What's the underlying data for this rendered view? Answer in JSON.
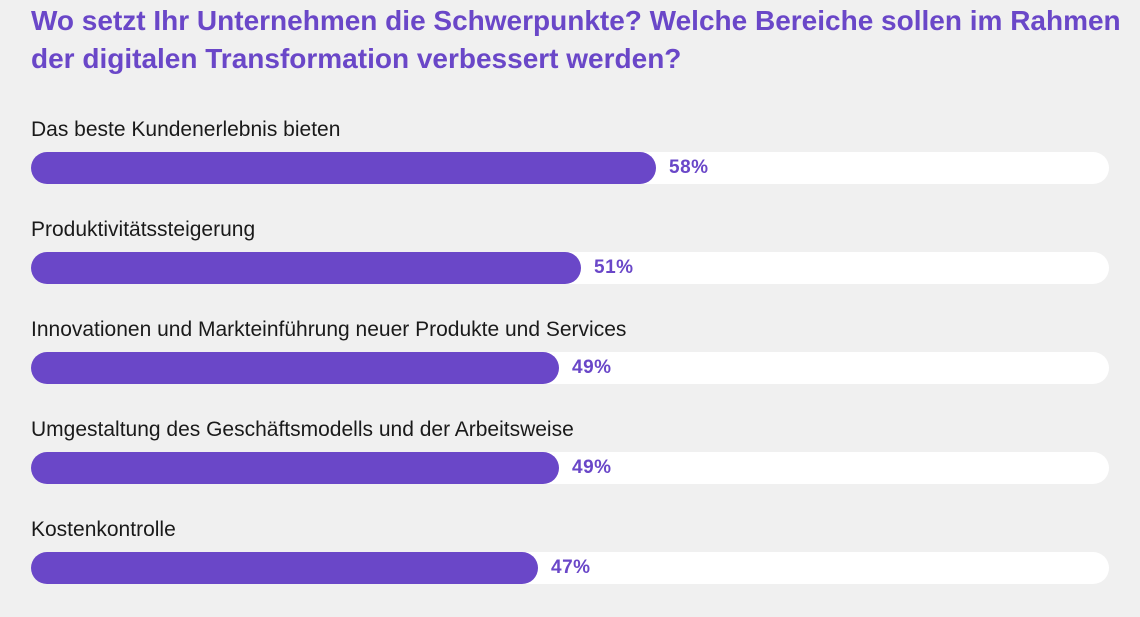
{
  "title": "Wo setzt Ihr Unternehmen die Schwerpunkte? Welche Bereiche sollen im Rahmen der digitalen Transformation verbessert werden?",
  "colors": {
    "accent": "#6a47c8",
    "track": "#ffffff",
    "background": "#f0f0f0"
  },
  "chart_data": {
    "type": "bar",
    "orientation": "horizontal",
    "title": "Wo setzt Ihr Unternehmen die Schwerpunkte? Welche Bereiche sollen im Rahmen der digitalen Transformation verbessert werden?",
    "xlim": [
      0,
      100
    ],
    "unit": "%",
    "categories": [
      "Das beste Kundenerlebnis bieten",
      "Produktivitätssteigerung",
      "Innovationen und Markteinführung neuer Produkte und Services",
      "Umgestaltung des Geschäftsmodells und der Arbeitsweise",
      "Kostenkontrolle"
    ],
    "values": [
      58,
      51,
      49,
      49,
      47
    ],
    "value_labels": [
      "58%",
      "51%",
      "49%",
      "49%",
      "47%"
    ]
  }
}
